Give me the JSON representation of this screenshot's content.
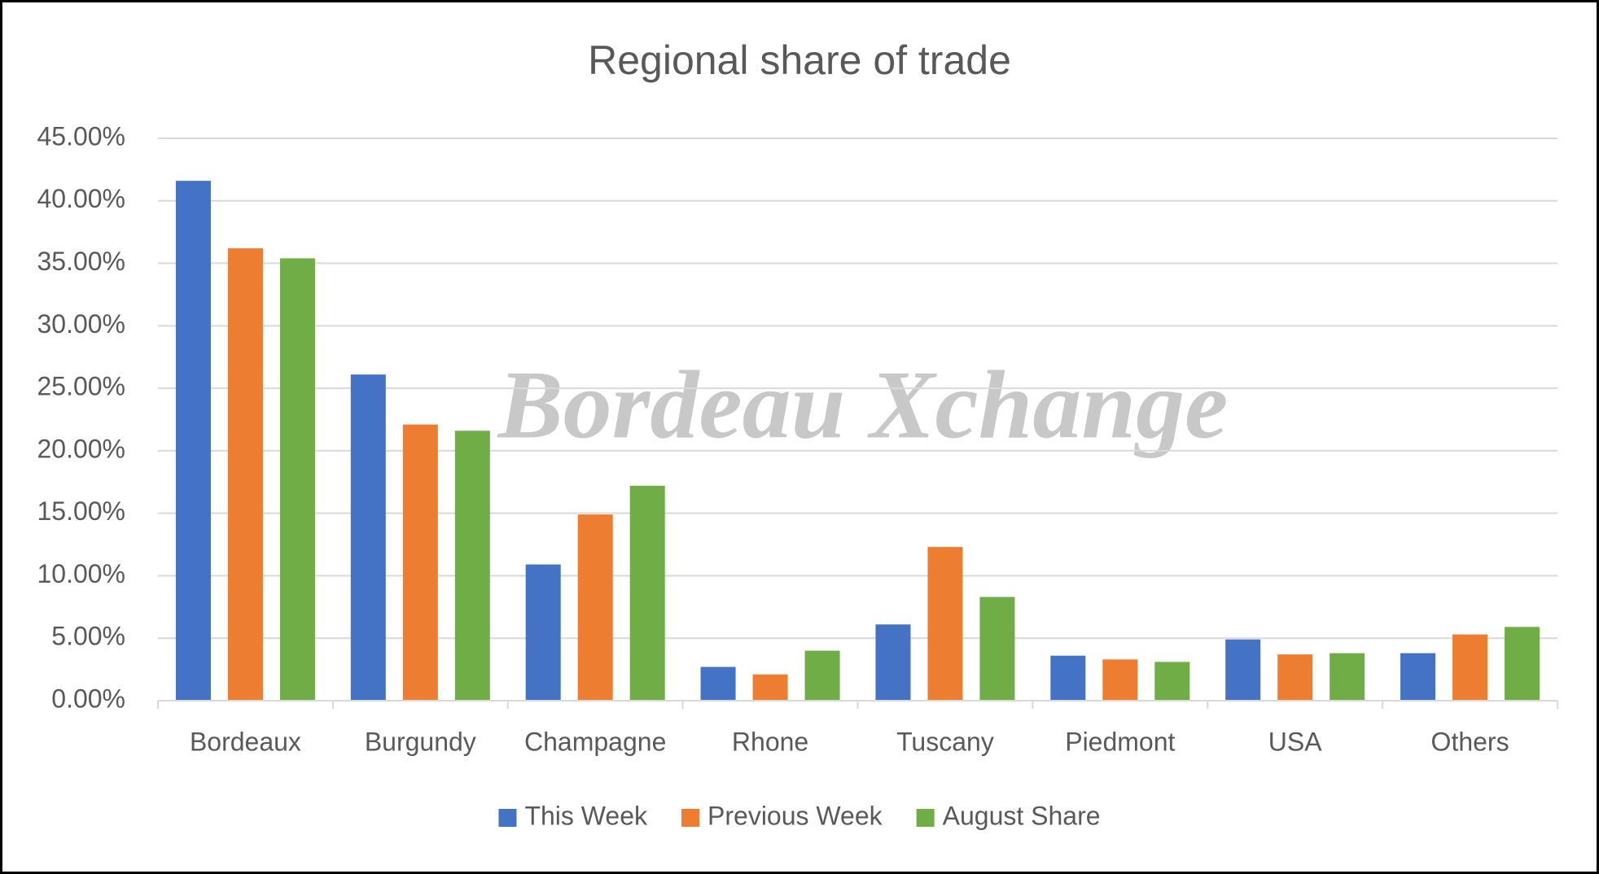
{
  "chart_data": {
    "type": "bar",
    "title": "Regional share of trade",
    "watermark": "Bordeau Xchange",
    "categories": [
      "Bordeaux",
      "Burgundy",
      "Champagne",
      "Rhone",
      "Tuscany",
      "Piedmont",
      "USA",
      "Others"
    ],
    "series": [
      {
        "name": "This Week",
        "color": "#4472c4",
        "values": [
          41.6,
          26.1,
          10.9,
          2.7,
          6.1,
          3.6,
          4.9,
          3.8
        ]
      },
      {
        "name": "Previous Week",
        "color": "#ed7d31",
        "values": [
          36.2,
          22.1,
          14.9,
          2.1,
          12.3,
          3.3,
          3.7,
          5.3
        ]
      },
      {
        "name": "August Share",
        "color": "#70ad47",
        "values": [
          35.4,
          21.6,
          17.2,
          4.0,
          8.3,
          3.1,
          3.8,
          5.9
        ]
      }
    ],
    "ylim": [
      0,
      45
    ],
    "yticks": [
      {
        "value": 0,
        "label": "0.00%"
      },
      {
        "value": 5,
        "label": "5.00%"
      },
      {
        "value": 10,
        "label": "10.00%"
      },
      {
        "value": 15,
        "label": "15.00%"
      },
      {
        "value": 20,
        "label": "20.00%"
      },
      {
        "value": 25,
        "label": "25.00%"
      },
      {
        "value": 30,
        "label": "30.00%"
      },
      {
        "value": 35,
        "label": "35.00%"
      },
      {
        "value": 40,
        "label": "40.00%"
      },
      {
        "value": 45,
        "label": "45.00%"
      }
    ],
    "grid": true,
    "legend": "bottom"
  }
}
